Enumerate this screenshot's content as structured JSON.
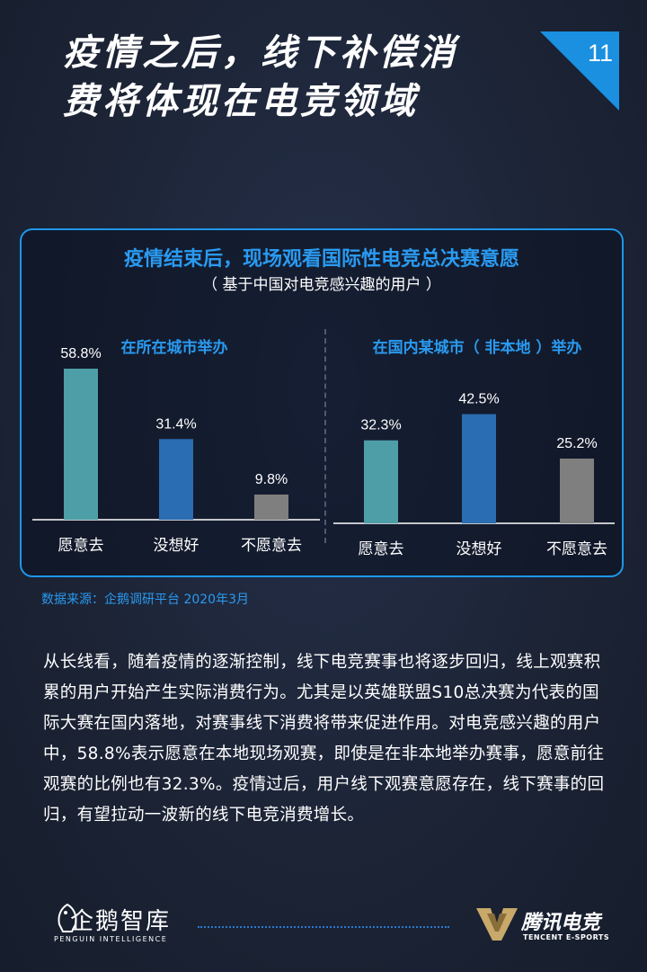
{
  "header": {
    "title_line1": "疫情之后，线下补偿消",
    "title_line2": "费将体现在电竞领域",
    "page_number": "11",
    "accent_color": "#1b8fe0"
  },
  "panel": {
    "title": "疫情结束后，现场观看国际性电竞总决赛意愿",
    "subtitle": "（ 基于中国对电竞感兴趣的用户 ）"
  },
  "chart_data": [
    {
      "type": "bar",
      "title": "在所在城市举办",
      "categories": [
        "愿意去",
        "没想好",
        "不愿意去"
      ],
      "values": [
        58.8,
        31.4,
        9.8
      ],
      "labels": [
        "58.8%",
        "31.4%",
        "9.8%"
      ],
      "colors": [
        "#4e9ea8",
        "#2a6db2",
        "#7f7f7f"
      ],
      "ylim": [
        0,
        70
      ]
    },
    {
      "type": "bar",
      "title": "在国内某城市（ 非本地 ）举办",
      "categories": [
        "愿意去",
        "没想好",
        "不愿意去"
      ],
      "values": [
        32.3,
        42.5,
        25.2
      ],
      "labels": [
        "32.3%",
        "42.5%",
        "25.2%"
      ],
      "colors": [
        "#4e9ea8",
        "#2a6db2",
        "#7f7f7f"
      ],
      "ylim": [
        0,
        70
      ]
    }
  ],
  "source": "数据来源：企鹅调研平台 2020年3月",
  "paragraph": "从长线看，随着疫情的逐渐控制，线下电竞赛事也将逐步回归，线上观赛积累的用户开始产生实际消费行为。尤其是以英雄联盟S10总决赛为代表的国际大赛在国内落地，对赛事线下消费将带来促进作用。对电竞感兴趣的用户中，58.8%表示愿意在本地现场观赛，即使是在非本地举办赛事，愿意前往观赛的比例也有32.3%。疫情过后，用户线下观赛意愿存在，线下赛事的回归，有望拉动一波新的线下电竞消费增长。",
  "footer": {
    "left_logo_name": "企鹅智库",
    "left_logo_en": "PENGUIN INTELLIGENCE",
    "right_logo_name": "腾讯电竞",
    "right_logo_en": "TENCENT E-SPORTS",
    "logo_color": "#c8a96a"
  }
}
